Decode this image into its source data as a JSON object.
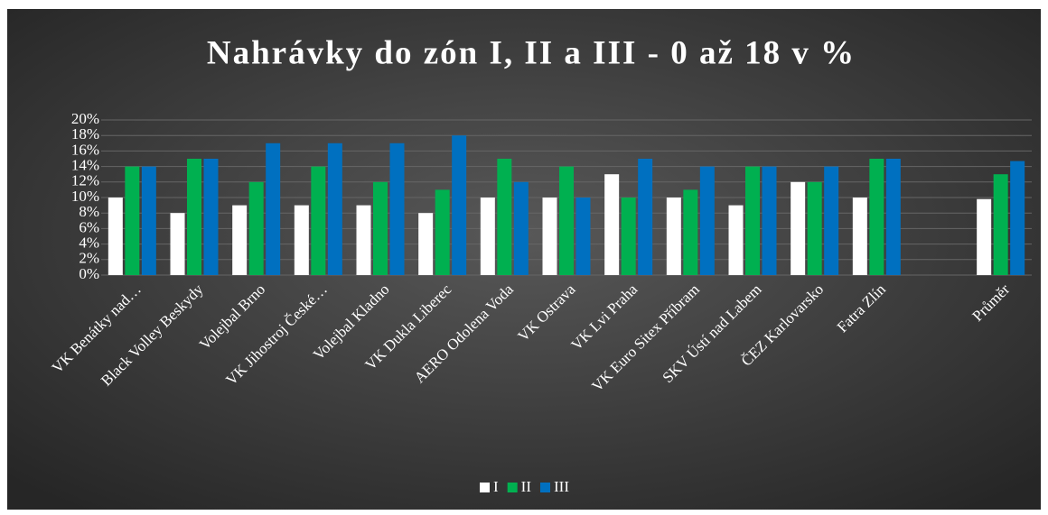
{
  "chart_data": {
    "type": "bar",
    "title": "Nahrávky do zón I, II a III - 0 až 18 v %",
    "categories": [
      "VK Benátky nad…",
      "Black Volley Beskydy",
      "Volejbal Brno",
      "VK Jihostroj České…",
      "Volejbal Kladno",
      "VK Dukla Liberec",
      "AERO Odolena Voda",
      "VK Ostrava",
      "VK Lvi Praha",
      "VK Euro Sitex Příbram",
      "SKV Ústí nad Labem",
      "ČEZ Karlovarsko",
      "Fatra Zlín",
      null,
      "Průměr"
    ],
    "series": [
      {
        "name": "I",
        "color": "#ffffff",
        "values": [
          10,
          8,
          9,
          9,
          9,
          8,
          10,
          10,
          13,
          10,
          9,
          12,
          10,
          null,
          9.8
        ]
      },
      {
        "name": "II",
        "color": "#00b050",
        "values": [
          14,
          15,
          12,
          14,
          12,
          11,
          15,
          14,
          10,
          11,
          14,
          12,
          15,
          null,
          13
        ]
      },
      {
        "name": "III",
        "color": "#0070c0",
        "values": [
          14,
          15,
          17,
          17,
          17,
          18,
          12,
          10,
          15,
          14,
          14,
          14,
          15,
          null,
          14.7
        ]
      }
    ],
    "ylim": [
      0,
      20
    ],
    "yticks": [
      {
        "value": 0,
        "label": "0%"
      },
      {
        "value": 2,
        "label": "2%"
      },
      {
        "value": 4,
        "label": "4%"
      },
      {
        "value": 6,
        "label": "6%"
      },
      {
        "value": 8,
        "label": "8%"
      },
      {
        "value": 10,
        "label": "10%"
      },
      {
        "value": 12,
        "label": "12%"
      },
      {
        "value": 14,
        "label": "14%"
      },
      {
        "value": 16,
        "label": "16%"
      },
      {
        "value": 18,
        "label": "18%"
      },
      {
        "value": 20,
        "label": "20%"
      }
    ],
    "grid": true,
    "legend": "bottom"
  }
}
